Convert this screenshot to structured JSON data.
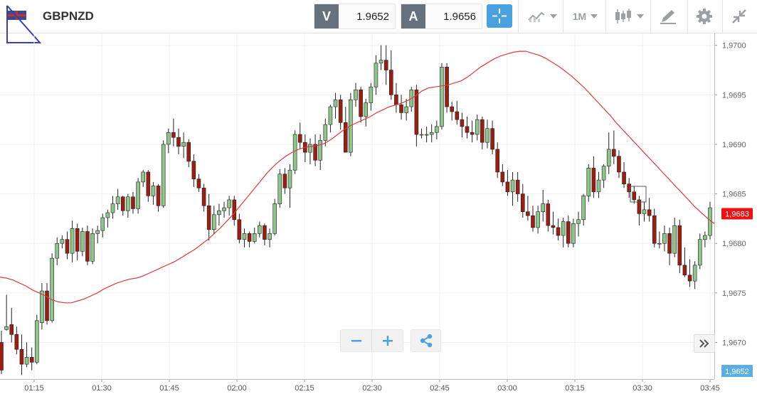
{
  "toolbar": {
    "symbol": "GBPNZD",
    "bid_label": "V",
    "bid_value": "1.9652",
    "ask_label": "A",
    "ask_value": "1.9656",
    "timeframe": "1M",
    "icons": [
      "flag-icon",
      "crosshair-icon",
      "line-chart-icon",
      "candlestick-icon",
      "drawing-tool-icon",
      "gear-icon",
      "collapse-icon"
    ]
  },
  "chart_data": {
    "type": "candlestick",
    "y_ticks": [
      "1,9670",
      "1,9675",
      "1,9680",
      "1,9685",
      "1,9690",
      "1,9695",
      "1,9700"
    ],
    "x_ticks": [
      "01:15",
      "01:30",
      "01:45",
      "02:00",
      "02:15",
      "02:30",
      "02:45",
      "03:00",
      "03:15",
      "03:30",
      "03:45"
    ],
    "ylim": [
      1.96663,
      1.97012
    ],
    "current_price_label": "1,9683",
    "last_price_label": "1,9652",
    "moving_average": [
      1.96766,
      1.96765,
      1.96763,
      1.9676,
      1.96757,
      1.96753,
      1.9675,
      1.96747,
      1.96743,
      1.96741,
      1.9674,
      1.9674,
      1.96742,
      1.96744,
      1.96747,
      1.9675,
      1.96754,
      1.96757,
      1.9676,
      1.96762,
      1.96764,
      1.96765,
      1.96767,
      1.9677,
      1.96773,
      1.96776,
      1.96779,
      1.96782,
      1.96786,
      1.9679,
      1.96794,
      1.96799,
      1.96804,
      1.9681,
      1.96816,
      1.96823,
      1.9683,
      1.96838,
      1.96846,
      1.96854,
      1.96862,
      1.9687,
      1.96877,
      1.96883,
      1.96888,
      1.96892,
      1.96895,
      1.96897,
      1.96898,
      1.96899,
      1.96901,
      1.96905,
      1.9691,
      1.96915,
      1.96919,
      1.96922,
      1.96925,
      1.96928,
      1.96932,
      1.96935,
      1.96938,
      1.9694,
      1.96942,
      1.96945,
      1.96949,
      1.96954,
      1.96957,
      1.96958,
      1.96959,
      1.9696,
      1.96962,
      1.96964,
      1.96968,
      1.96973,
      1.96978,
      1.96982,
      1.96986,
      1.96989,
      1.96991,
      1.96993,
      1.96994,
      1.96994,
      1.96992,
      1.9699,
      1.96987,
      1.96983,
      1.96979,
      1.96974,
      1.96969,
      1.96963,
      1.96957,
      1.9695,
      1.96943,
      1.96936,
      1.96929,
      1.96921,
      1.96914,
      1.96907,
      1.969,
      1.96893,
      1.96886,
      1.96879,
      1.96872,
      1.96865,
      1.96858,
      1.96851,
      1.96844,
      1.96837,
      1.96831,
      1.96825,
      1.9682
    ],
    "candles": [
      [
        1.967,
        1.96712,
        1.96668,
        1.96672
      ],
      [
        1.96713,
        1.96748,
        1.96712,
        1.96716
      ],
      [
        1.96718,
        1.96735,
        1.967,
        1.96708
      ],
      [
        1.96708,
        1.96716,
        1.96688,
        1.96693
      ],
      [
        1.96693,
        1.96708,
        1.96667,
        1.96678
      ],
      [
        1.96678,
        1.967,
        1.96675,
        1.96685
      ],
      [
        1.96685,
        1.96695,
        1.96672,
        1.9668
      ],
      [
        1.9668,
        1.96728,
        1.96678,
        1.96722
      ],
      [
        1.9672,
        1.9676,
        1.96713,
        1.96752
      ],
      [
        1.96752,
        1.9676,
        1.96718,
        1.96722
      ],
      [
        1.96722,
        1.9679,
        1.9672,
        1.96785
      ],
      [
        1.96785,
        1.96806,
        1.96778,
        1.968
      ],
      [
        1.968,
        1.96808,
        1.96795,
        1.96804
      ],
      [
        1.96804,
        1.96812,
        1.96784,
        1.9679
      ],
      [
        1.9679,
        1.96823,
        1.96781,
        1.96815
      ],
      [
        1.96815,
        1.9682,
        1.96783,
        1.96792
      ],
      [
        1.96792,
        1.96816,
        1.96787,
        1.96812
      ],
      [
        1.96812,
        1.96818,
        1.96778,
        1.96782
      ],
      [
        1.96782,
        1.96815,
        1.96779,
        1.9681
      ],
      [
        1.9681,
        1.96818,
        1.968,
        1.96813
      ],
      [
        1.96813,
        1.9683,
        1.96806,
        1.96826
      ],
      [
        1.96826,
        1.96834,
        1.96816,
        1.96831
      ],
      [
        1.96831,
        1.96848,
        1.96825,
        1.9684
      ],
      [
        1.9684,
        1.96855,
        1.96834,
        1.96847
      ],
      [
        1.96847,
        1.96848,
        1.96828,
        1.96833
      ],
      [
        1.96833,
        1.9685,
        1.96826,
        1.96847
      ],
      [
        1.96847,
        1.96852,
        1.9683,
        1.96835
      ],
      [
        1.96835,
        1.96866,
        1.9683,
        1.96862
      ],
      [
        1.96862,
        1.96874,
        1.96857,
        1.96872
      ],
      [
        1.96872,
        1.96874,
        1.96842,
        1.96848
      ],
      [
        1.96848,
        1.96862,
        1.96839,
        1.96858
      ],
      [
        1.96858,
        1.9686,
        1.96832,
        1.96838
      ],
      [
        1.96838,
        1.96904,
        1.96836,
        1.969
      ],
      [
        1.969,
        1.96916,
        1.96891,
        1.96912
      ],
      [
        1.96912,
        1.96926,
        1.96898,
        1.96907
      ],
      [
        1.96907,
        1.96916,
        1.9689,
        1.96898
      ],
      [
        1.96898,
        1.96912,
        1.96886,
        1.96902
      ],
      [
        1.96902,
        1.96905,
        1.96877,
        1.96883
      ],
      [
        1.96883,
        1.9689,
        1.96857,
        1.96865
      ],
      [
        1.96865,
        1.9687,
        1.96852,
        1.96856
      ],
      [
        1.96856,
        1.9686,
        1.96832,
        1.96838
      ],
      [
        1.96838,
        1.9685,
        1.96803,
        1.96814
      ],
      [
        1.96814,
        1.96838,
        1.9681,
        1.96829
      ],
      [
        1.96829,
        1.9684,
        1.96818,
        1.96833
      ],
      [
        1.96833,
        1.96842,
        1.96826,
        1.96836
      ],
      [
        1.96836,
        1.96848,
        1.96828,
        1.96844
      ],
      [
        1.96844,
        1.96848,
        1.96818,
        1.96824
      ],
      [
        1.96824,
        1.9683,
        1.968,
        1.96804
      ],
      [
        1.96804,
        1.96815,
        1.96796,
        1.9681
      ],
      [
        1.9681,
        1.96812,
        1.96796,
        1.96802
      ],
      [
        1.96802,
        1.96816,
        1.968,
        1.9681
      ],
      [
        1.9681,
        1.96822,
        1.96806,
        1.96818
      ],
      [
        1.96818,
        1.9682,
        1.96798,
        1.96804
      ],
      [
        1.96804,
        1.96815,
        1.96796,
        1.9681
      ],
      [
        1.9681,
        1.96845,
        1.96808,
        1.9684
      ],
      [
        1.9684,
        1.96875,
        1.96836,
        1.9687
      ],
      [
        1.9687,
        1.96876,
        1.9685,
        1.96856
      ],
      [
        1.96856,
        1.9688,
        1.96836,
        1.96874
      ],
      [
        1.96874,
        1.96914,
        1.9687,
        1.9691
      ],
      [
        1.9691,
        1.96922,
        1.96896,
        1.96902
      ],
      [
        1.96902,
        1.9691,
        1.96882,
        1.96892
      ],
      [
        1.96892,
        1.96906,
        1.9688,
        1.969
      ],
      [
        1.969,
        1.9691,
        1.96878,
        1.96884
      ],
      [
        1.96884,
        1.9691,
        1.96874,
        1.96904
      ],
      [
        1.96904,
        1.96926,
        1.96898,
        1.9692
      ],
      [
        1.9692,
        1.9694,
        1.96912,
        1.96938
      ],
      [
        1.96938,
        1.96952,
        1.96926,
        1.96945
      ],
      [
        1.96945,
        1.9695,
        1.96915,
        1.96922
      ],
      [
        1.96922,
        1.96938,
        1.96892,
        1.96892
      ],
      [
        1.96892,
        1.96952,
        1.96888,
        1.96945
      ],
      [
        1.96945,
        1.96962,
        1.96938,
        1.96955
      ],
      [
        1.96955,
        1.96958,
        1.96922,
        1.96928
      ],
      [
        1.96928,
        1.96946,
        1.96918,
        1.96942
      ],
      [
        1.96942,
        1.96962,
        1.96934,
        1.96958
      ],
      [
        1.96958,
        1.9699,
        1.9695,
        1.96982
      ],
      [
        1.96982,
        1.97,
        1.96975,
        1.96985
      ],
      [
        1.96985,
        1.97,
        1.9696,
        1.96975
      ],
      [
        1.96975,
        1.96995,
        1.96945,
        1.9695
      ],
      [
        1.9695,
        1.96962,
        1.96932,
        1.9694
      ],
      [
        1.9694,
        1.9695,
        1.96925,
        1.96932
      ],
      [
        1.96932,
        1.96946,
        1.96924,
        1.96938
      ],
      [
        1.96938,
        1.96958,
        1.96933,
        1.96955
      ],
      [
        1.96955,
        1.9696,
        1.96898,
        1.9691
      ],
      [
        1.9691,
        1.96916,
        1.96906,
        1.9691
      ],
      [
        1.9691,
        1.96918,
        1.96902,
        1.9691
      ],
      [
        1.9691,
        1.9692,
        1.96902,
        1.96912
      ],
      [
        1.96912,
        1.96924,
        1.96905,
        1.96918
      ],
      [
        1.96918,
        1.96982,
        1.96915,
        1.96978
      ],
      [
        1.96978,
        1.96982,
        1.96932,
        1.96938
      ],
      [
        1.96938,
        1.96943,
        1.96924,
        1.96933
      ],
      [
        1.96933,
        1.96944,
        1.9692,
        1.96925
      ],
      [
        1.96925,
        1.96932,
        1.96907,
        1.96918
      ],
      [
        1.96918,
        1.96928,
        1.96906,
        1.96912
      ],
      [
        1.96912,
        1.96924,
        1.96902,
        1.9691
      ],
      [
        1.9691,
        1.9693,
        1.96904,
        1.96925
      ],
      [
        1.96925,
        1.96928,
        1.96895,
        1.96902
      ],
      [
        1.96902,
        1.96925,
        1.96896,
        1.96916
      ],
      [
        1.96916,
        1.96924,
        1.9689,
        1.96895
      ],
      [
        1.96895,
        1.96902,
        1.96866,
        1.96872
      ],
      [
        1.96872,
        1.9688,
        1.96858,
        1.96862
      ],
      [
        1.96862,
        1.96874,
        1.96848,
        1.96852
      ],
      [
        1.96852,
        1.96872,
        1.96838,
        1.96864
      ],
      [
        1.96864,
        1.96872,
        1.96842,
        1.9685
      ],
      [
        1.9685,
        1.9686,
        1.96826,
        1.96832
      ],
      [
        1.96832,
        1.96848,
        1.96823,
        1.96828
      ],
      [
        1.96828,
        1.96838,
        1.96812,
        1.96816
      ],
      [
        1.96816,
        1.96838,
        1.9681,
        1.96832
      ],
      [
        1.96832,
        1.96854,
        1.96822,
        1.9684
      ],
      [
        1.9684,
        1.96844,
        1.96812,
        1.96818
      ],
      [
        1.96818,
        1.96832,
        1.96809,
        1.96816
      ],
      [
        1.96816,
        1.96825,
        1.96803,
        1.96808
      ],
      [
        1.96808,
        1.96826,
        1.96796,
        1.96822
      ],
      [
        1.96822,
        1.96828,
        1.96796,
        1.968
      ],
      [
        1.968,
        1.96825,
        1.96796,
        1.9682
      ],
      [
        1.9682,
        1.96832,
        1.96807,
        1.96824
      ],
      [
        1.96824,
        1.9685,
        1.96818,
        1.96848
      ],
      [
        1.96848,
        1.9688,
        1.96842,
        1.96876
      ],
      [
        1.96876,
        1.96888,
        1.96846,
        1.96852
      ],
      [
        1.96852,
        1.96872,
        1.96846,
        1.96864
      ],
      [
        1.96864,
        1.9688,
        1.96856,
        1.96878
      ],
      [
        1.96878,
        1.96912,
        1.9687,
        1.96895
      ],
      [
        1.96895,
        1.96914,
        1.9688,
        1.96888
      ],
      [
        1.96888,
        1.96894,
        1.96866,
        1.96872
      ],
      [
        1.96872,
        1.96882,
        1.96856,
        1.9686
      ],
      [
        1.9686,
        1.96866,
        1.96846,
        1.96852
      ],
      [
        1.96852,
        1.96858,
        1.9684,
        1.96844
      ],
      [
        1.96844,
        1.96848,
        1.96818,
        1.9683
      ],
      [
        1.9683,
        1.96842,
        1.96822,
        1.96834
      ],
      [
        1.96834,
        1.96846,
        1.96822,
        1.96828
      ],
      [
        1.96828,
        1.96835,
        1.96796,
        1.968
      ],
      [
        1.968,
        1.96812,
        1.96795,
        1.968
      ],
      [
        1.968,
        1.96818,
        1.96792,
        1.9681
      ],
      [
        1.9681,
        1.96816,
        1.96778,
        1.9679
      ],
      [
        1.9679,
        1.96826,
        1.96786,
        1.96818
      ],
      [
        1.96818,
        1.96824,
        1.9677,
        1.96778
      ],
      [
        1.96778,
        1.96796,
        1.96766,
        1.96768
      ],
      [
        1.96768,
        1.96784,
        1.96756,
        1.96762
      ],
      [
        1.96762,
        1.96782,
        1.96754,
        1.96778
      ],
      [
        1.96778,
        1.9681,
        1.96774,
        1.96804
      ],
      [
        1.96804,
        1.96812,
        1.96796,
        1.96808
      ],
      [
        1.96808,
        1.96842,
        1.96804,
        1.96836
      ]
    ]
  }
}
